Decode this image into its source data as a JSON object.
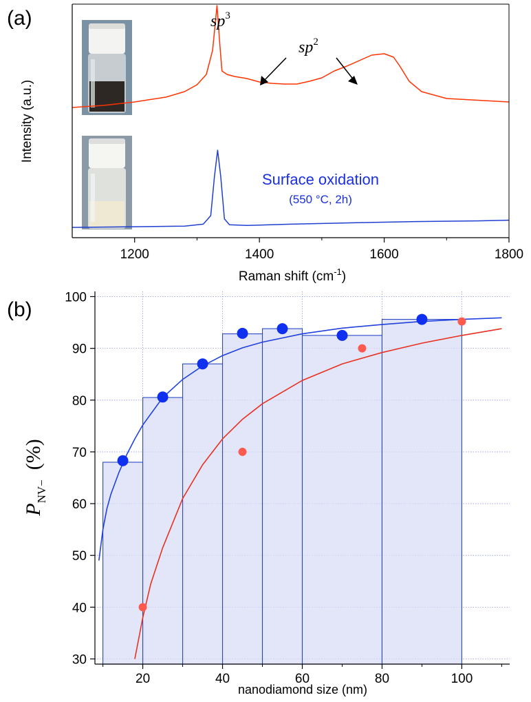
{
  "chart_data": [
    {
      "panel_label": "(a)",
      "type": "line",
      "xlabel": "Raman shift (cm",
      "xlabel_sup": "-1",
      "xlabel_tail": ")",
      "ylabel": "Intensity (a.u.)",
      "xlim": [
        1100,
        1800
      ],
      "xticks": [
        1200,
        1400,
        1600,
        1800
      ],
      "grid": false,
      "annotations": {
        "sp3": "sp",
        "sp3_sup": "3",
        "sp2": "sp",
        "sp2_sup": "2",
        "oxidation_line1": "Surface oxidation",
        "oxidation_line2": "(550 °C, 2h)"
      },
      "colors": {
        "before": "#ff3300",
        "after": "#1f3fd0"
      },
      "series": [
        {
          "color": "#ff3300",
          "x": [
            1100,
            1150,
            1200,
            1250,
            1280,
            1300,
            1315,
            1325,
            1332,
            1336,
            1340,
            1348,
            1360,
            1380,
            1400,
            1420,
            1440,
            1460,
            1480,
            1500,
            1520,
            1540,
            1560,
            1580,
            1600,
            1615,
            1625,
            1640,
            1660,
            1680,
            1700,
            1740,
            1800
          ],
          "y": [
            0.22,
            0.25,
            0.3,
            0.37,
            0.45,
            0.55,
            0.7,
            1.05,
            1.7,
            1.2,
            0.75,
            0.7,
            0.67,
            0.64,
            0.59,
            0.57,
            0.56,
            0.56,
            0.6,
            0.65,
            0.75,
            0.82,
            0.9,
            0.98,
            1.0,
            0.95,
            0.82,
            0.6,
            0.45,
            0.4,
            0.35,
            0.33,
            0.3
          ]
        },
        {
          "color": "#1f3fd0",
          "x": [
            1100,
            1200,
            1280,
            1310,
            1322,
            1328,
            1333,
            1338,
            1344,
            1352,
            1380,
            1450,
            1550,
            1650,
            1750,
            1800
          ],
          "y": [
            0.02,
            0.03,
            0.04,
            0.07,
            0.2,
            0.8,
            1.2,
            0.8,
            0.15,
            0.06,
            0.05,
            0.07,
            0.09,
            0.11,
            0.12,
            0.13
          ]
        }
      ]
    },
    {
      "panel_label": "(b)",
      "type": "scatter",
      "xlabel": "nanodiamond size (nm)",
      "ylabel_symbol": "P",
      "ylabel_sub": "NV−",
      "ylabel_unit": "(%)",
      "xlim": [
        8,
        112
      ],
      "ylim": [
        29,
        101
      ],
      "xticks": [
        20,
        40,
        60,
        80,
        100
      ],
      "yticks": [
        30,
        40,
        50,
        60,
        70,
        80,
        90,
        100
      ],
      "grid": true,
      "histogram": {
        "color": "#2a48c8",
        "bins": [
          {
            "x0": 10,
            "x1": 20,
            "value": 68
          },
          {
            "x0": 20,
            "x1": 30,
            "value": 80.5
          },
          {
            "x0": 30,
            "x1": 40,
            "value": 87
          },
          {
            "x0": 40,
            "x1": 50,
            "value": 92.8
          },
          {
            "x0": 50,
            "x1": 60,
            "value": 93.8
          },
          {
            "x0": 60,
            "x1": 80,
            "value": 92.5
          },
          {
            "x0": 80,
            "x1": 100,
            "value": 95.6
          }
        ]
      },
      "series": [
        {
          "color": "#1030f0",
          "x": [
            15,
            25,
            35,
            45,
            55,
            70,
            90
          ],
          "y": [
            68.3,
            80.6,
            87,
            92.9,
            93.8,
            92.5,
            95.6
          ]
        },
        {
          "color": "#ff5a50",
          "x": [
            20,
            45,
            75,
            100
          ],
          "y": [
            40,
            70,
            90,
            95.2
          ]
        }
      ],
      "fits": [
        {
          "color": "#2040e0",
          "x": [
            9,
            10,
            11,
            12,
            14,
            16,
            18,
            20,
            25,
            30,
            35,
            40,
            45,
            50,
            60,
            70,
            80,
            90,
            100,
            110
          ],
          "y": [
            49,
            55,
            59,
            61.8,
            66,
            69.5,
            72.5,
            75.2,
            80.5,
            84,
            86.6,
            88.6,
            90.1,
            91.2,
            92.8,
            93.9,
            94.6,
            95.2,
            95.6,
            95.9
          ]
        },
        {
          "color": "#e83020",
          "x": [
            18,
            20,
            22,
            25,
            30,
            35,
            40,
            45,
            50,
            60,
            70,
            80,
            90,
            100,
            110
          ],
          "y": [
            30,
            38,
            44.5,
            51.5,
            61,
            67.5,
            72.5,
            76.3,
            79.3,
            83.8,
            87,
            89.2,
            91,
            92.5,
            93.8
          ]
        }
      ]
    }
  ]
}
